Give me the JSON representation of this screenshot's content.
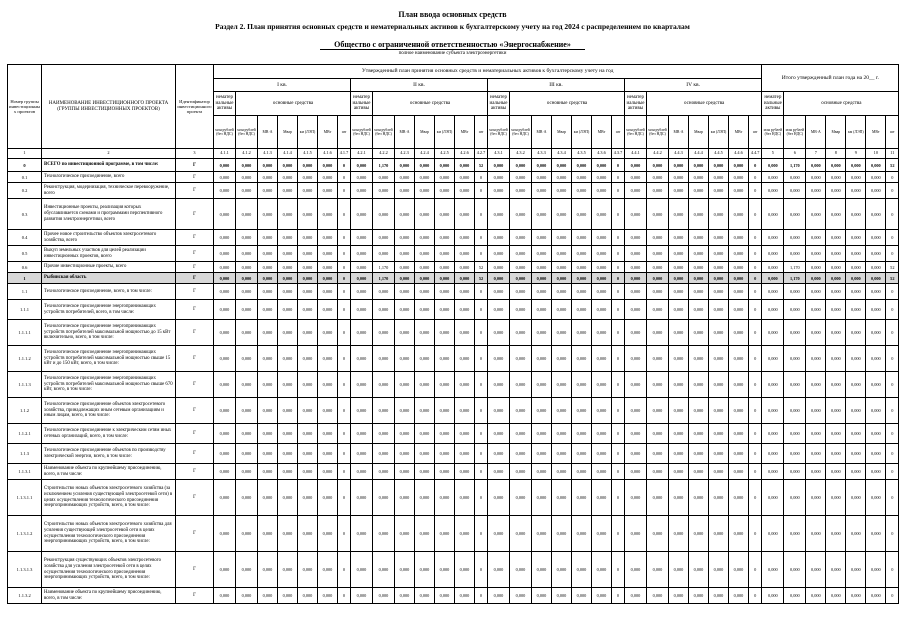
{
  "page": {
    "title": "План ввода основных средств",
    "section": "Раздел 2. План принятия основных средств и нематериальных активов к бухгалтерскому учету на год 2024 с распределением по кварталам",
    "company": "Общество с ограниченной ответственностью «Энергоснабжение»",
    "company_note": "полное наименование субъекта электроэнергетики"
  },
  "table": {
    "top_header": "Утвержденный план принятия основных средств и нематериальных активов к бухгалтерскому учету на год",
    "total_header": "Итого утвержденный план года на 20__ г.",
    "left_headers": [
      "Номер группы инвестиционных проектов",
      "НАИМЕНОВАНИЕ ИНВЕСТИЦИОННОГО ПРОЕКТА (ГРУППЫ ИНВЕСТИЦИОННЫХ ПРОЕКТОВ)",
      "Идентификатор инвестиционного проекта"
    ],
    "left_numbers": [
      "1",
      "2",
      "3"
    ],
    "quarter_labels": [
      "I кв.",
      "II кв.",
      "III кв.",
      "IV кв."
    ],
    "group_intangible": "нематериальные активы",
    "group_fixed": "основные средства",
    "unit_headers": [
      "млн рублей (без НДС)",
      "млн рублей (без НДС)",
      "МВ·А",
      "Мвар",
      "км (ЛЭП)",
      "МВт",
      "шт"
    ],
    "column_types": [
      "money",
      "money",
      "money",
      "money",
      "money",
      "money",
      "count"
    ],
    "defaults": {
      "money": "0,000",
      "count": "0"
    },
    "block_numbers": {
      "q1": [
        "4.1.1",
        "4.1.2",
        "4.1.3",
        "4.1.4",
        "4.1.5",
        "4.1.6",
        "4.1.7"
      ],
      "q2": [
        "4.2.1",
        "4.2.2",
        "4.2.3",
        "4.2.4",
        "4.2.5",
        "4.2.6",
        "4.2.7"
      ],
      "q3": [
        "4.3.1",
        "4.3.2",
        "4.3.3",
        "4.3.4",
        "4.3.5",
        "4.3.6",
        "4.3.7"
      ],
      "q4": [
        "4.4.1",
        "4.4.2",
        "4.4.3",
        "4.4.4",
        "4.4.5",
        "4.4.6",
        "4.4.7"
      ],
      "total": [
        "5",
        "6",
        "7",
        "8",
        "9",
        "10",
        "11"
      ]
    },
    "rows": [
      {
        "num": "0",
        "name": "ВСЕГО по инвестиционной программе, в том числе:",
        "id": "Г",
        "style": "bold",
        "overrides": {
          "q2": {
            "1": "1,170",
            "6": "52"
          },
          "total": {
            "1": "1,170",
            "6": "52"
          }
        }
      },
      {
        "num": "0.1",
        "name": "Технологическое присоединение, всего",
        "id": "Г",
        "style": ""
      },
      {
        "num": "0.2",
        "name": "Реконструкция, модернизация, техническое перевооружение, всего",
        "id": "Г",
        "style": ""
      },
      {
        "num": "0.3",
        "name": "Инвестиционные проекты, реализация которых обуславливается схемами и программами перспективного развития электроэнергетики, всего",
        "id": "Г",
        "style": ""
      },
      {
        "num": "0.4",
        "name": "Прочее новое строительство объектов электросетевого хозяйства, всего",
        "id": "Г",
        "style": ""
      },
      {
        "num": "0.5",
        "name": "Выкуп земельных участков для целей реализации инвестиционных проектов, всего",
        "id": "Г",
        "style": ""
      },
      {
        "num": "0.6",
        "name": "Прочие инвестиционные проекты, всего",
        "id": "Г",
        "style": "",
        "overrides": {
          "q2": {
            "1": "1,170",
            "6": "52"
          },
          "total": {
            "1": "1,170",
            "6": "52"
          }
        }
      },
      {
        "num": "1",
        "name": "Рыбинская область",
        "id": "Г",
        "style": "bold shaded",
        "overrides": {
          "q2": {
            "1": "1,170",
            "6": "52"
          },
          "total": {
            "1": "1,170",
            "6": "52"
          }
        }
      },
      {
        "num": "1.1",
        "name": "Технологическое присоединение, всего, в том числе:",
        "id": "Г",
        "style": ""
      },
      {
        "num": "1.1.1",
        "name": "Технологическое присоединение энергопринимающих устройств потребителей, всего, в том числе:",
        "id": "Г",
        "style": ""
      },
      {
        "num": "1.1.1.1",
        "name": "Технологическое присоединение энергопринимающих устройств потребителей максимальной мощностью до 15 кВт включительно, всего, в том числе:",
        "id": "Г",
        "style": ""
      },
      {
        "num": "1.1.1.2",
        "name": "Технологическое присоединение энергопринимающих устройств потребителей максимальной мощностью свыше 15 кВт и до 150 кВт, всего, в том числе:",
        "id": "Г",
        "style": ""
      },
      {
        "num": "1.1.1.3",
        "name": "Технологическое присоединение энергопринимающих устройств потребителей максимальной мощностью свыше 670 кВт, всего, в том числе:",
        "id": "Г",
        "style": ""
      },
      {
        "num": "1.1.2",
        "name": "Технологическое присоединение объектов электросетевого хозяйства, принадлежащих иным сетевым организациям и иным лицам, всего, в том числе:",
        "id": "Г",
        "style": ""
      },
      {
        "num": "1.1.2.1",
        "name": "Технологическое присоединение к электрическим сетям иных сетевых организаций, всего, в том числе:",
        "id": "Г",
        "style": ""
      },
      {
        "num": "1.1.3",
        "name": "Технологическое присоединение объектов по производству электрической энергии, всего, в том числе:",
        "id": "Г",
        "style": ""
      },
      {
        "num": "1.1.3.1",
        "name": "Наименование объекта по крупнейшему присоединению, всего, в том числе:",
        "id": "Г",
        "style": ""
      },
      {
        "num": "1.1.3.1.1",
        "name": "Строительство новых объектов электросетевого хозяйства (за исключением усиления существующей электросетевой сети) в целях осуществления технологического присоединения энергопринимающих устройств, всего, в том числе:",
        "id": "Г",
        "style": ""
      },
      {
        "num": "1.1.3.1.2",
        "name": "Строительство новых объектов электросетевого хозяйства для усиления существующей электросетевой сети в целях осуществления технологического присоединения энергопринимающих устройств, всего, в том числе:",
        "id": "Г",
        "style": ""
      },
      {
        "num": "1.1.3.1.3",
        "name": "Реконструкция существующих объектов электросетевого хозяйства для усиления электросетевой сети в целях осуществления технологического присоединения энергопринимающих устройств, всего, в том числе:",
        "id": "Г",
        "style": ""
      },
      {
        "num": "1.1.3.2",
        "name": "Наименование объекта по крупнейшему присоединению, всего, в том числе:",
        "id": "Г",
        "style": ""
      }
    ]
  }
}
